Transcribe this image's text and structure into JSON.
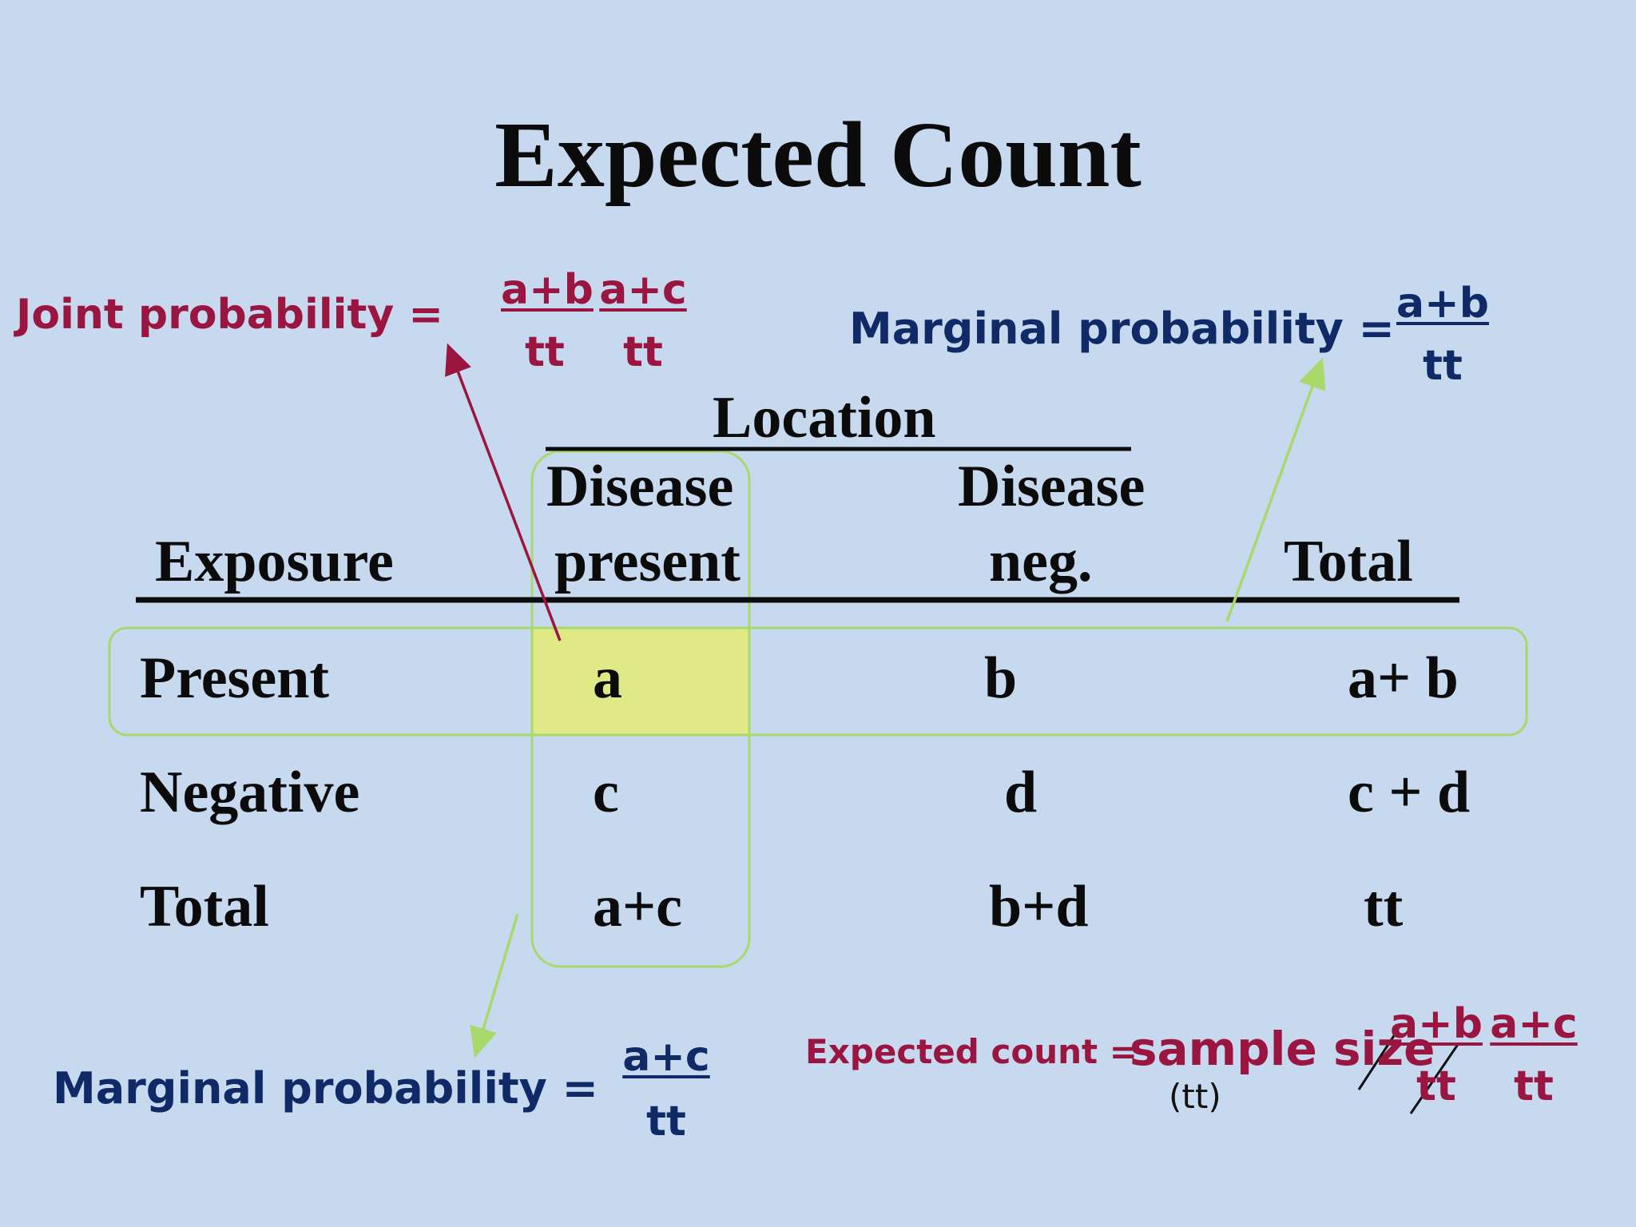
{
  "title": "Expected Count",
  "joint_probability": {
    "label": "Joint probability =",
    "frac1_num": "a+b",
    "frac1_den": "tt",
    "frac2_num": "a+c",
    "frac2_den": "tt"
  },
  "marginal_probability_row": {
    "label": "Marginal probability =",
    "num": "a+b",
    "den": "tt"
  },
  "marginal_probability_col": {
    "label": "Marginal probability =",
    "num": "a+c",
    "den": "tt"
  },
  "expected_count": {
    "label": "Expected count =",
    "sample_size": "sample size",
    "sample_size_note": "(tt)",
    "frac1_num": "a+b",
    "frac1_den": "tt",
    "frac2_num": "a+c",
    "frac2_den": "tt"
  },
  "table": {
    "group_header": "Location",
    "row_header": "Exposure",
    "col1_line1": "Disease",
    "col1_line2": "present",
    "col2_line1": "Disease",
    "col2_line2": "neg.",
    "col3": "Total",
    "rows": [
      {
        "label": "Present",
        "c1": "a",
        "c2": "b",
        "c3": "a+ b"
      },
      {
        "label": "Negative",
        "c1": "c",
        "c2": "d",
        "c3": "c + d"
      },
      {
        "label": "Total",
        "c1": "a+c",
        "c2": "b+d",
        "c3": "tt"
      }
    ]
  },
  "colors": {
    "background": "#c6d9ef",
    "joint": "#9b1541",
    "marginal": "#0f2a66",
    "highlight_cell": "#dfea86",
    "highlight_outline": "#a9d86b"
  }
}
